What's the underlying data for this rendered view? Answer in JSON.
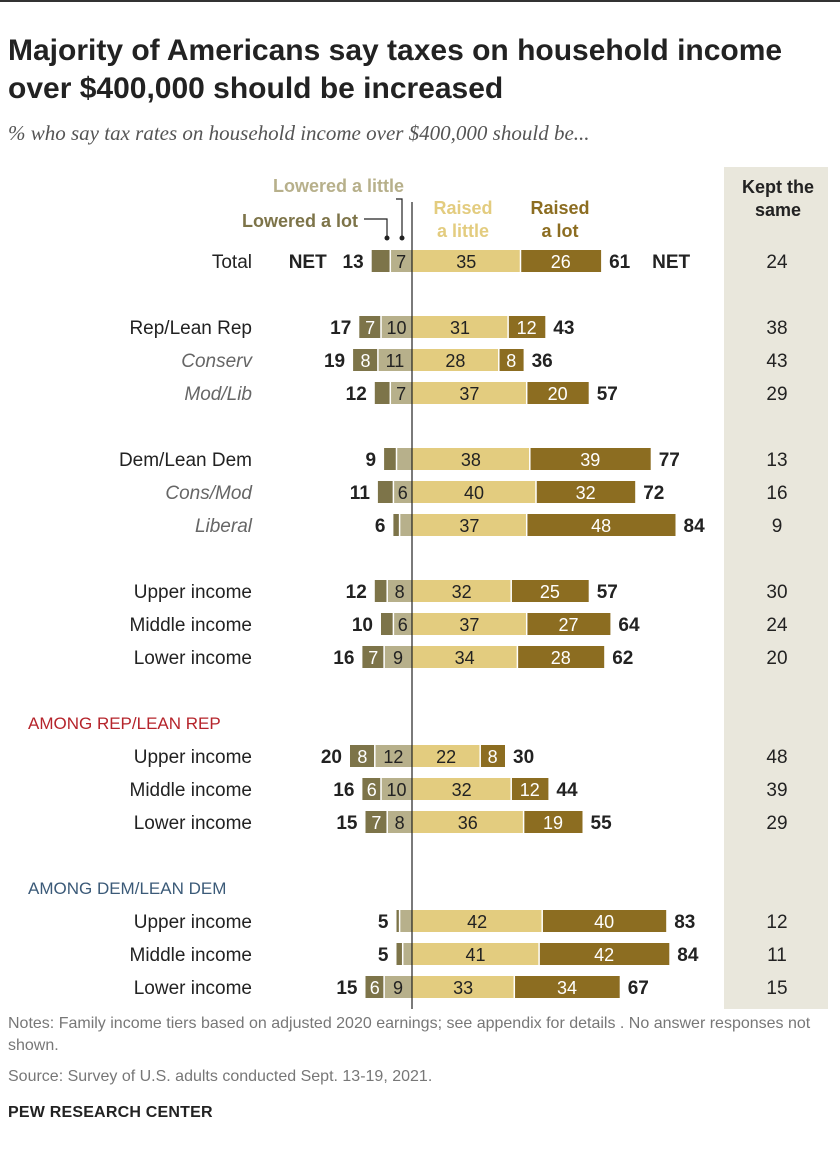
{
  "title": "Majority of Americans say taxes on household income over $400,000 should be increased",
  "subtitle": "% who say tax rates on household income over $400,000 should be...",
  "notes": "Notes: Family income tiers based on adjusted 2020 earnings; see appendix for details . No answer responses not shown.",
  "source": "Source: Survey of U.S. adults conducted Sept. 13-19, 2021.",
  "brand": "PEW RESEARCH CENTER",
  "colors": {
    "lowered_a_lot": "#7d7449",
    "lowered_a_little": "#b7b08b",
    "raised_a_little": "#e3cc7f",
    "raised_a_lot": "#8c6d21",
    "kept_bg": "#e9e7dc",
    "rep_header": "#b5242b",
    "dem_header": "#3b5a78",
    "top_rule": "#333333"
  },
  "chart_data": {
    "type": "bar",
    "orientation": "horizontal-diverging",
    "legend": {
      "lowered_a_lot": "Lowered a lot",
      "lowered_a_little": "Lowered a little",
      "raised_a_little": "Raised a little",
      "raised_a_lot": "Raised a lot",
      "kept_the_same": "Kept the same"
    },
    "net_label": "NET",
    "series_order": [
      "lowered_a_lot",
      "lowered_a_little",
      "raised_a_little",
      "raised_a_lot"
    ],
    "groups": [
      {
        "header": null,
        "rows": [
          {
            "label": "Total",
            "italic": false,
            "lowered_a_lot": 6,
            "lowered_a_little": 7,
            "raised_a_little": 35,
            "raised_a_lot": 26,
            "net_lowered": 13,
            "net_raised": 61,
            "kept_the_same": 24,
            "show_net_text": true,
            "labels": {
              "lowered_a_lot": null,
              "lowered_a_little": "7",
              "raised_a_little": "35",
              "raised_a_lot": "26"
            }
          }
        ]
      },
      {
        "header": null,
        "rows": [
          {
            "label": "Rep/Lean Rep",
            "italic": false,
            "lowered_a_lot": 7,
            "lowered_a_little": 10,
            "raised_a_little": 31,
            "raised_a_lot": 12,
            "net_lowered": 17,
            "net_raised": 43,
            "kept_the_same": 38,
            "labels": {
              "lowered_a_lot": "7",
              "lowered_a_little": "10",
              "raised_a_little": "31",
              "raised_a_lot": "12"
            }
          },
          {
            "label": "Conserv",
            "italic": true,
            "lowered_a_lot": 8,
            "lowered_a_little": 11,
            "raised_a_little": 28,
            "raised_a_lot": 8,
            "net_lowered": 19,
            "net_raised": 36,
            "kept_the_same": 43,
            "labels": {
              "lowered_a_lot": "8",
              "lowered_a_little": "11",
              "raised_a_little": "28",
              "raised_a_lot": "8"
            }
          },
          {
            "label": "Mod/Lib",
            "italic": true,
            "lowered_a_lot": 5,
            "lowered_a_little": 7,
            "raised_a_little": 37,
            "raised_a_lot": 20,
            "net_lowered": 12,
            "net_raised": 57,
            "kept_the_same": 29,
            "labels": {
              "lowered_a_lot": null,
              "lowered_a_little": "7",
              "raised_a_little": "37",
              "raised_a_lot": "20"
            }
          }
        ]
      },
      {
        "header": null,
        "rows": [
          {
            "label": "Dem/Lean Dem",
            "italic": false,
            "lowered_a_lot": 4,
            "lowered_a_little": 5,
            "raised_a_little": 38,
            "raised_a_lot": 39,
            "net_lowered": 9,
            "net_raised": 77,
            "kept_the_same": 13,
            "labels": {
              "lowered_a_lot": null,
              "lowered_a_little": null,
              "raised_a_little": "38",
              "raised_a_lot": "39"
            }
          },
          {
            "label": "Cons/Mod",
            "italic": true,
            "lowered_a_lot": 5,
            "lowered_a_little": 6,
            "raised_a_little": 40,
            "raised_a_lot": 32,
            "net_lowered": 11,
            "net_raised": 72,
            "kept_the_same": 16,
            "labels": {
              "lowered_a_lot": null,
              "lowered_a_little": "6",
              "raised_a_little": "40",
              "raised_a_lot": "32"
            }
          },
          {
            "label": "Liberal",
            "italic": true,
            "lowered_a_lot": 2,
            "lowered_a_little": 4,
            "raised_a_little": 37,
            "raised_a_lot": 48,
            "net_lowered": 6,
            "net_raised": 84,
            "kept_the_same": 9,
            "labels": {
              "lowered_a_lot": null,
              "lowered_a_little": null,
              "raised_a_little": "37",
              "raised_a_lot": "48"
            }
          }
        ]
      },
      {
        "header": null,
        "rows": [
          {
            "label": "Upper income",
            "italic": false,
            "lowered_a_lot": 4,
            "lowered_a_little": 8,
            "raised_a_little": 32,
            "raised_a_lot": 25,
            "net_lowered": 12,
            "net_raised": 57,
            "kept_the_same": 30,
            "labels": {
              "lowered_a_lot": null,
              "lowered_a_little": "8",
              "raised_a_little": "32",
              "raised_a_lot": "25"
            }
          },
          {
            "label": "Middle income",
            "italic": false,
            "lowered_a_lot": 4,
            "lowered_a_little": 6,
            "raised_a_little": 37,
            "raised_a_lot": 27,
            "net_lowered": 10,
            "net_raised": 64,
            "kept_the_same": 24,
            "labels": {
              "lowered_a_lot": null,
              "lowered_a_little": "6",
              "raised_a_little": "37",
              "raised_a_lot": "27"
            }
          },
          {
            "label": "Lower income",
            "italic": false,
            "lowered_a_lot": 7,
            "lowered_a_little": 9,
            "raised_a_little": 34,
            "raised_a_lot": 28,
            "net_lowered": 16,
            "net_raised": 62,
            "kept_the_same": 20,
            "labels": {
              "lowered_a_lot": "7",
              "lowered_a_little": "9",
              "raised_a_little": "34",
              "raised_a_lot": "28"
            }
          }
        ]
      },
      {
        "header": "AMONG REP/LEAN REP",
        "header_color": "rep",
        "rows": [
          {
            "label": "Upper income",
            "italic": false,
            "lowered_a_lot": 8,
            "lowered_a_little": 12,
            "raised_a_little": 22,
            "raised_a_lot": 8,
            "net_lowered": 20,
            "net_raised": 30,
            "kept_the_same": 48,
            "labels": {
              "lowered_a_lot": "8",
              "lowered_a_little": "12",
              "raised_a_little": "22",
              "raised_a_lot": "8"
            }
          },
          {
            "label": "Middle income",
            "italic": false,
            "lowered_a_lot": 6,
            "lowered_a_little": 10,
            "raised_a_little": 32,
            "raised_a_lot": 12,
            "net_lowered": 16,
            "net_raised": 44,
            "kept_the_same": 39,
            "labels": {
              "lowered_a_lot": "6",
              "lowered_a_little": "10",
              "raised_a_little": "32",
              "raised_a_lot": "12"
            }
          },
          {
            "label": "Lower income",
            "italic": false,
            "lowered_a_lot": 7,
            "lowered_a_little": 8,
            "raised_a_little": 36,
            "raised_a_lot": 19,
            "net_lowered": 15,
            "net_raised": 55,
            "kept_the_same": 29,
            "labels": {
              "lowered_a_lot": "7",
              "lowered_a_little": "8",
              "raised_a_little": "36",
              "raised_a_lot": "19"
            }
          }
        ]
      },
      {
        "header": "AMONG DEM/LEAN DEM",
        "header_color": "dem",
        "rows": [
          {
            "label": "Upper income",
            "italic": false,
            "lowered_a_lot": 1,
            "lowered_a_little": 4,
            "raised_a_little": 42,
            "raised_a_lot": 40,
            "net_lowered": 5,
            "net_raised": 83,
            "kept_the_same": 12,
            "labels": {
              "lowered_a_lot": null,
              "lowered_a_little": null,
              "raised_a_little": "42",
              "raised_a_lot": "40"
            }
          },
          {
            "label": "Middle income",
            "italic": false,
            "lowered_a_lot": 2,
            "lowered_a_little": 3,
            "raised_a_little": 41,
            "raised_a_lot": 42,
            "net_lowered": 5,
            "net_raised": 84,
            "kept_the_same": 11,
            "labels": {
              "lowered_a_lot": null,
              "lowered_a_little": null,
              "raised_a_little": "41",
              "raised_a_lot": "42"
            }
          },
          {
            "label": "Lower income",
            "italic": false,
            "lowered_a_lot": 6,
            "lowered_a_little": 9,
            "raised_a_little": 33,
            "raised_a_lot": 34,
            "net_lowered": 15,
            "net_raised": 67,
            "kept_the_same": 15,
            "labels": {
              "lowered_a_lot": "6",
              "lowered_a_little": "9",
              "raised_a_little": "33",
              "raised_a_lot": "34"
            }
          }
        ]
      }
    ]
  }
}
